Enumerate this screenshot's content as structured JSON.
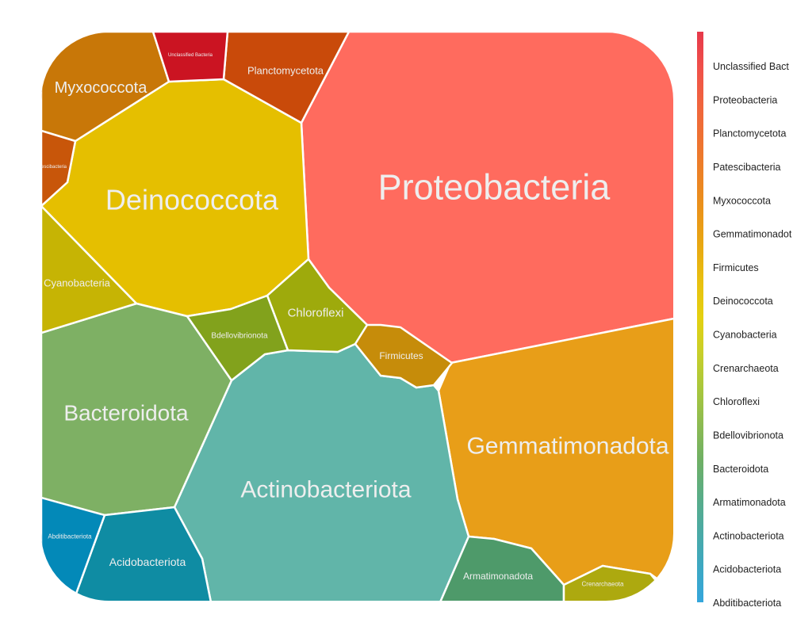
{
  "chart_data": {
    "type": "voronoi-treemap",
    "cells": [
      {
        "name": "Proteobacteria",
        "color": "#FF6B5E"
      },
      {
        "name": "Gemmatimonadota",
        "color": "#E89E18"
      },
      {
        "name": "Actinobacteriota",
        "color": "#61B5A9"
      },
      {
        "name": "Deinococcota",
        "color": "#E5BF00"
      },
      {
        "name": "Bacteroidota",
        "color": "#7EB064"
      },
      {
        "name": "Myxococcota",
        "color": "#C87708"
      },
      {
        "name": "Planctomycetota",
        "color": "#C94A0A"
      },
      {
        "name": "Cyanobacteria",
        "color": "#C6B404"
      },
      {
        "name": "Chloroflexi",
        "color": "#9EAA0C"
      },
      {
        "name": "Bdellovibrionota",
        "color": "#82A21C"
      },
      {
        "name": "Firmicutes",
        "color": "#C68C0A"
      },
      {
        "name": "Acidobacteriota",
        "color": "#0F8CA3"
      },
      {
        "name": "Armatimonadota",
        "color": "#4E9A6A"
      },
      {
        "name": "Abditibacteriota",
        "color": "#0389B8"
      },
      {
        "name": "Crenarchaeota",
        "color": "#ADA90F"
      },
      {
        "name": "Unclassified Bacteria",
        "color": "#CB1422"
      },
      {
        "name": "Patescibacteria",
        "color": "#C8560A"
      }
    ],
    "legend": {
      "placement": "right",
      "entries": [
        "Unclassified Bact",
        "Proteobacteria",
        "Planctomycetota",
        "Patescibacteria",
        "Myxococcota",
        "Gemmatimonadot",
        "Firmicutes",
        "Deinococcota",
        "Cyanobacteria",
        "Crenarchaeota",
        "Chloroflexi",
        "Bdellovibrionota",
        "Bacteroidota",
        "Armatimonadota",
        "Actinobacteriota",
        "Acidobacteriota",
        "Abditibacteriota"
      ],
      "colors": [
        "#E6394A",
        "#F0504A",
        "#F0643E",
        "#EE7232",
        "#EC8226",
        "#EA931A",
        "#E8A812",
        "#E8C010",
        "#E4D010",
        "#C8CF2A",
        "#A9C73C",
        "#8DBB52",
        "#70B064",
        "#5AAD86",
        "#4BAAA4",
        "#3DA8C2",
        "#35A6DC"
      ]
    },
    "labels_visible": {
      "Unclassified Bacteria": "Unclassified Bacteria",
      "Patescibacteria": "escibacteria"
    }
  }
}
